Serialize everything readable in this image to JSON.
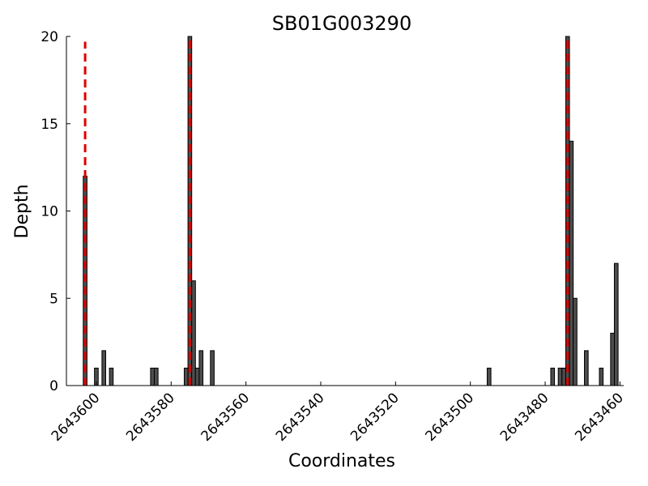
{
  "chart_data": {
    "type": "bar",
    "title": "SB01G003290",
    "xlabel": "Coordinates",
    "ylabel": "Depth",
    "x_direction": "descending",
    "xlim": [
      2643608,
      2643459
    ],
    "ylim": [
      0,
      20
    ],
    "xticks": [
      2643600,
      2643580,
      2643560,
      2643540,
      2643520,
      2643500,
      2643480,
      2643460
    ],
    "yticks": [
      0,
      5,
      10,
      15,
      20
    ],
    "grid": false,
    "legend": "none",
    "bar_width": 1,
    "bar_color": "#4d4d4d",
    "bar_edge_color": "#000000",
    "vline_color": "#e00000",
    "bars": [
      {
        "x": 2643603,
        "y": 12
      },
      {
        "x": 2643600,
        "y": 1
      },
      {
        "x": 2643598,
        "y": 2
      },
      {
        "x": 2643596,
        "y": 1
      },
      {
        "x": 2643585,
        "y": 1
      },
      {
        "x": 2643584,
        "y": 1
      },
      {
        "x": 2643576,
        "y": 1
      },
      {
        "x": 2643575,
        "y": 20
      },
      {
        "x": 2643574,
        "y": 6
      },
      {
        "x": 2643573,
        "y": 1
      },
      {
        "x": 2643572,
        "y": 2
      },
      {
        "x": 2643569,
        "y": 2
      },
      {
        "x": 2643495,
        "y": 1
      },
      {
        "x": 2643478,
        "y": 1
      },
      {
        "x": 2643476,
        "y": 1
      },
      {
        "x": 2643475,
        "y": 1
      },
      {
        "x": 2643474,
        "y": 20
      },
      {
        "x": 2643473,
        "y": 14
      },
      {
        "x": 2643472,
        "y": 5
      },
      {
        "x": 2643469,
        "y": 2
      },
      {
        "x": 2643465,
        "y": 1
      },
      {
        "x": 2643462,
        "y": 3
      },
      {
        "x": 2643461,
        "y": 7
      }
    ],
    "vlines": [
      {
        "x": 2643603,
        "y_top": 19.7
      },
      {
        "x": 2643575,
        "y_top": 20
      },
      {
        "x": 2643474,
        "y_top": 20
      }
    ]
  }
}
